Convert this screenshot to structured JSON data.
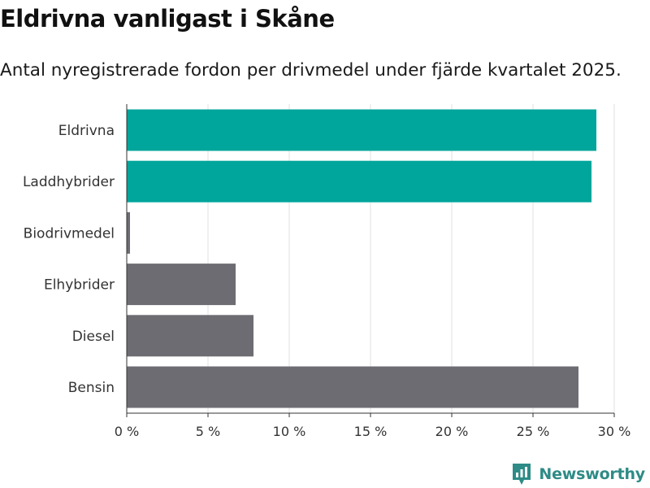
{
  "chart_data": {
    "type": "bar",
    "orientation": "horizontal",
    "title": "Eldrivna vanligast i Skåne",
    "subtitle": "Antal nyregistrerade fordon per drivmedel under fjärde kvartalet 2025.",
    "categories": [
      "Eldrivna",
      "Laddhybrider",
      "Biodrivmedel",
      "Elhybrider",
      "Diesel",
      "Bensin"
    ],
    "values": [
      28.9,
      28.6,
      0.2,
      6.7,
      7.8,
      27.8
    ],
    "bar_colors": [
      "#00a59b",
      "#00a59b",
      "#6e6c73",
      "#6e6c73",
      "#6e6c73",
      "#6e6c73"
    ],
    "xlim": [
      0,
      30
    ],
    "xticks": [
      0,
      5,
      10,
      15,
      20,
      25,
      30
    ],
    "xtick_labels": [
      "0 %",
      "5 %",
      "10 %",
      "15 %",
      "20 %",
      "25 %",
      "30 %"
    ],
    "xlabel": "",
    "ylabel": "",
    "grid": "vertical",
    "legend": "none"
  },
  "brand": {
    "name": "Newsworthy",
    "color": "#2e8b86",
    "icon": "newsworthy-logo-icon"
  },
  "colors": {
    "highlight": "#00a59b",
    "other": "#6e6c73",
    "grid": "#e0e0e0",
    "axis": "#333333"
  }
}
